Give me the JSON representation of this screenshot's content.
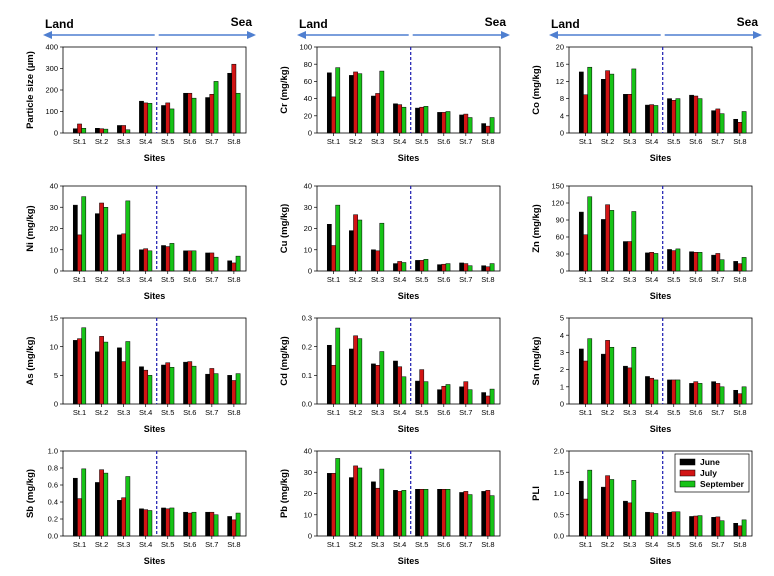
{
  "figure": {
    "banner_left": "Land",
    "banner_right": "Sea",
    "site_axis_label": "Sites",
    "legend": [
      "June",
      "July",
      "September"
    ],
    "colors": {
      "June": "#000000",
      "July": "#d21414",
      "September": "#17c417",
      "arrow": "#4f7fd0",
      "divider": "#1a1ab0"
    }
  },
  "chart_data": [
    {
      "type": "bar",
      "ylabel": "Particle size (µm)",
      "xlabel": "Sites",
      "ylim": [
        0,
        400
      ],
      "yticks": [
        "0",
        "100",
        "200",
        "300",
        "400"
      ],
      "categories": [
        "St.1",
        "St.2",
        "St.3",
        "St.4",
        "St.5",
        "St.6",
        "St.7",
        "St.8"
      ],
      "series": [
        {
          "name": "June",
          "values": [
            20,
            22,
            35,
            148,
            128,
            185,
            165,
            278
          ]
        },
        {
          "name": "July",
          "values": [
            42,
            20,
            35,
            140,
            140,
            185,
            180,
            320
          ]
        },
        {
          "name": "September",
          "values": [
            22,
            18,
            15,
            138,
            112,
            162,
            240,
            185
          ]
        }
      ]
    },
    {
      "type": "bar",
      "ylabel": "Cr (mg/kg)",
      "xlabel": "Sites",
      "ylim": [
        0,
        100
      ],
      "yticks": [
        "0",
        "20",
        "40",
        "60",
        "80",
        "100"
      ],
      "categories": [
        "St.1",
        "St.2",
        "St.3",
        "St.4",
        "St.5",
        "St.6",
        "St.7",
        "St.8"
      ],
      "series": [
        {
          "name": "June",
          "values": [
            70,
            67,
            43,
            34,
            29,
            24,
            21,
            11
          ]
        },
        {
          "name": "July",
          "values": [
            42,
            71,
            46,
            33,
            30,
            24,
            22,
            8
          ]
        },
        {
          "name": "September",
          "values": [
            76,
            69,
            72,
            30,
            31,
            25,
            18,
            18
          ]
        }
      ]
    },
    {
      "type": "bar",
      "ylabel": "Co (mg/kg)",
      "xlabel": "Sites",
      "ylim": [
        0,
        20
      ],
      "yticks": [
        "0",
        "4",
        "8",
        "12",
        "16",
        "20"
      ],
      "categories": [
        "St.1",
        "St.2",
        "St.3",
        "St.4",
        "St.5",
        "St.6",
        "St.7",
        "St.8"
      ],
      "series": [
        {
          "name": "June",
          "values": [
            14.2,
            12.5,
            9.0,
            6.5,
            8.0,
            8.8,
            5.2,
            3.2
          ]
        },
        {
          "name": "July",
          "values": [
            8.9,
            14.5,
            9.0,
            6.6,
            7.6,
            8.6,
            5.6,
            2.5
          ]
        },
        {
          "name": "September",
          "values": [
            15.3,
            13.7,
            14.9,
            6.4,
            8.0,
            8.0,
            4.5,
            5.0
          ]
        }
      ]
    },
    {
      "type": "bar",
      "ylabel": "Ni (mg/kg)",
      "xlabel": "Sites",
      "ylim": [
        0,
        40
      ],
      "yticks": [
        "0",
        "10",
        "20",
        "30",
        "40"
      ],
      "categories": [
        "St.1",
        "St.2",
        "St.3",
        "St.4",
        "St.5",
        "St.6",
        "St.7",
        "St.8"
      ],
      "series": [
        {
          "name": "June",
          "values": [
            31,
            27,
            17,
            10,
            12,
            9.5,
            8.5,
            4.8
          ]
        },
        {
          "name": "July",
          "values": [
            17,
            32,
            17.5,
            10.5,
            11.5,
            9.5,
            8.5,
            3.8
          ]
        },
        {
          "name": "September",
          "values": [
            35,
            30,
            33,
            9.5,
            13,
            9.5,
            6.5,
            7.0
          ]
        }
      ]
    },
    {
      "type": "bar",
      "ylabel": "Cu (mg/kg)",
      "xlabel": "Sites",
      "ylim": [
        0,
        40
      ],
      "yticks": [
        "0",
        "10",
        "20",
        "30",
        "40"
      ],
      "categories": [
        "St.1",
        "St.2",
        "St.3",
        "St.4",
        "St.5",
        "St.6",
        "St.7",
        "St.8"
      ],
      "series": [
        {
          "name": "June",
          "values": [
            22,
            19,
            10,
            3.5,
            5,
            3,
            3.8,
            2.5
          ]
        },
        {
          "name": "July",
          "values": [
            12,
            26.5,
            9.5,
            4.5,
            5,
            3.2,
            3.5,
            2.0
          ]
        },
        {
          "name": "September",
          "values": [
            31,
            24,
            22.5,
            4,
            5.5,
            3.5,
            2.5,
            3.5
          ]
        }
      ]
    },
    {
      "type": "bar",
      "ylabel": "Zn (mg/kg)",
      "xlabel": "Sites",
      "ylim": [
        0,
        150
      ],
      "yticks": [
        "0",
        "30",
        "60",
        "90",
        "120",
        "150"
      ],
      "categories": [
        "St.1",
        "St.2",
        "St.3",
        "St.4",
        "St.5",
        "St.6",
        "St.7",
        "St.8"
      ],
      "series": [
        {
          "name": "June",
          "values": [
            104,
            91,
            52,
            32,
            38,
            34,
            28,
            17
          ]
        },
        {
          "name": "July",
          "values": [
            64,
            117,
            52,
            33,
            36,
            33,
            31,
            13
          ]
        },
        {
          "name": "September",
          "values": [
            131,
            107,
            105,
            31,
            39,
            33,
            20,
            24
          ]
        }
      ]
    },
    {
      "type": "bar",
      "ylabel": "As (mg/kg)",
      "xlabel": "Sites",
      "ylim": [
        0,
        15
      ],
      "yticks": [
        "0",
        "5",
        "10",
        "15"
      ],
      "categories": [
        "St.1",
        "St.2",
        "St.3",
        "St.4",
        "St.5",
        "St.6",
        "St.7",
        "St.8"
      ],
      "series": [
        {
          "name": "June",
          "values": [
            11.1,
            9.1,
            9.8,
            6.5,
            6.8,
            7.3,
            5.2,
            5.0
          ]
        },
        {
          "name": "July",
          "values": [
            11.4,
            11.8,
            7.4,
            5.9,
            7.2,
            7.4,
            6.2,
            4.1
          ]
        },
        {
          "name": "September",
          "values": [
            13.3,
            10.8,
            10.9,
            5.0,
            6.4,
            6.6,
            5.3,
            5.3
          ]
        }
      ]
    },
    {
      "type": "bar",
      "ylabel": "Cd (mg/kg)",
      "xlabel": "Sites",
      "ylim": [
        0,
        0.3
      ],
      "yticks": [
        "0.0",
        "0.1",
        "0.2",
        "0.3"
      ],
      "categories": [
        "St.1",
        "St.2",
        "St.3",
        "St.4",
        "St.5",
        "St.6",
        "St.7",
        "St.8"
      ],
      "series": [
        {
          "name": "June",
          "values": [
            0.205,
            0.192,
            0.14,
            0.15,
            0.08,
            0.05,
            0.06,
            0.04
          ]
        },
        {
          "name": "July",
          "values": [
            0.135,
            0.238,
            0.135,
            0.13,
            0.12,
            0.062,
            0.078,
            0.028
          ]
        },
        {
          "name": "September",
          "values": [
            0.265,
            0.228,
            0.183,
            0.095,
            0.078,
            0.068,
            0.05,
            0.052
          ]
        }
      ]
    },
    {
      "type": "bar",
      "ylabel": "Sn (mg/kg)",
      "xlabel": "Sites",
      "ylim": [
        0,
        5
      ],
      "yticks": [
        "0",
        "1",
        "2",
        "3",
        "4",
        "5"
      ],
      "categories": [
        "St.1",
        "St.2",
        "St.3",
        "St.4",
        "St.5",
        "St.6",
        "St.7",
        "St.8"
      ],
      "series": [
        {
          "name": "June",
          "values": [
            3.2,
            2.9,
            2.2,
            1.6,
            1.4,
            1.2,
            1.3,
            0.8
          ]
        },
        {
          "name": "July",
          "values": [
            2.5,
            3.7,
            2.1,
            1.5,
            1.4,
            1.3,
            1.2,
            0.6
          ]
        },
        {
          "name": "September",
          "values": [
            3.8,
            3.3,
            3.3,
            1.4,
            1.4,
            1.2,
            1.0,
            1.0
          ]
        }
      ]
    },
    {
      "type": "bar",
      "ylabel": "Sb (mg/kg)",
      "xlabel": "Sites",
      "ylim": [
        0,
        1.0
      ],
      "yticks": [
        "0.0",
        "0.2",
        "0.4",
        "0.6",
        "0.8",
        "1.0"
      ],
      "categories": [
        "St.1",
        "St.2",
        "St.3",
        "St.4",
        "St.5",
        "St.6",
        "St.7",
        "St.8"
      ],
      "series": [
        {
          "name": "June",
          "values": [
            0.68,
            0.63,
            0.42,
            0.32,
            0.33,
            0.28,
            0.28,
            0.23
          ]
        },
        {
          "name": "July",
          "values": [
            0.44,
            0.78,
            0.45,
            0.31,
            0.32,
            0.27,
            0.28,
            0.19
          ]
        },
        {
          "name": "September",
          "values": [
            0.79,
            0.74,
            0.7,
            0.3,
            0.33,
            0.28,
            0.25,
            0.27
          ]
        }
      ]
    },
    {
      "type": "bar",
      "ylabel": "Pb (mg/kg)",
      "xlabel": "Sites",
      "ylim": [
        0,
        40
      ],
      "yticks": [
        "0",
        "10",
        "20",
        "30",
        "40"
      ],
      "categories": [
        "St.1",
        "St.2",
        "St.3",
        "St.4",
        "St.5",
        "St.6",
        "St.7",
        "St.8"
      ],
      "series": [
        {
          "name": "June",
          "values": [
            29.5,
            27.5,
            25.5,
            21.5,
            22,
            22,
            20.5,
            21
          ]
        },
        {
          "name": "July",
          "values": [
            29.5,
            33,
            22.5,
            21,
            22,
            22,
            21,
            21.5
          ]
        },
        {
          "name": "September",
          "values": [
            36.5,
            32,
            31.5,
            21.5,
            22,
            22,
            19.5,
            19
          ]
        }
      ]
    },
    {
      "type": "bar",
      "ylabel": "PLI",
      "xlabel": "Sites",
      "ylim": [
        0,
        2.0
      ],
      "yticks": [
        "0.0",
        "0.5",
        "1.0",
        "1.5",
        "2.0"
      ],
      "categories": [
        "St.1",
        "St.2",
        "St.3",
        "St.4",
        "St.5",
        "St.6",
        "St.7",
        "St.8"
      ],
      "series": [
        {
          "name": "June",
          "values": [
            1.29,
            1.15,
            0.82,
            0.56,
            0.56,
            0.46,
            0.44,
            0.3
          ]
        },
        {
          "name": "July",
          "values": [
            0.87,
            1.42,
            0.78,
            0.55,
            0.57,
            0.47,
            0.45,
            0.24
          ]
        },
        {
          "name": "September",
          "values": [
            1.55,
            1.33,
            1.31,
            0.53,
            0.57,
            0.48,
            0.36,
            0.38
          ]
        }
      ],
      "legend": "top-right"
    }
  ]
}
